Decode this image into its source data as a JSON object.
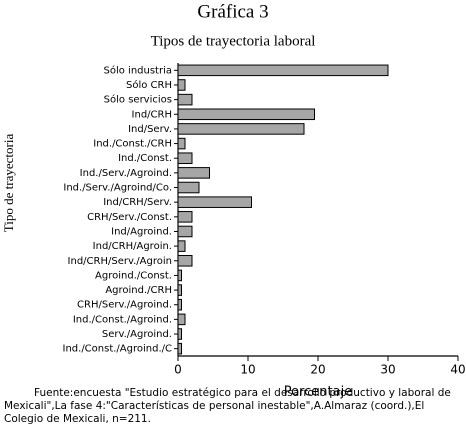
{
  "chart_data": {
    "type": "barh",
    "title": "Gráfica 3",
    "subtitle": "Tipos de trayectoria laboral",
    "x_label": "Porcentaje",
    "y_label": "Tipo de trayectoria",
    "categories": [
      "Sólo industria",
      "Sólo CRH",
      "Sólo servicios",
      "Ind/CRH",
      "Ind/Serv.",
      "Ind./Const./CRH",
      "Ind./Const.",
      "Ind./Serv./Agroind.",
      "Ind./Serv./Agroind/Co.",
      "Ind/CRH/Serv.",
      "CRH/Serv./Const.",
      "Ind/Agroind.",
      "Ind/CRH/Agroin.",
      "Ind/CRH/Serv./Agroin",
      "Agroind./Const.",
      "Agroind./CRH",
      "CRH/Serv./Agroind.",
      "Ind./Const./Agroind.",
      "Serv./Agroind.",
      "Ind./Const./Agroind./C"
    ],
    "values": [
      30,
      1,
      2,
      19.5,
      18,
      1,
      2,
      4.5,
      3,
      10.5,
      2,
      2,
      1,
      2,
      0.5,
      0.5,
      0.5,
      1,
      0.5,
      0.5
    ],
    "color": "#a6a6a6",
    "xlim": [
      0,
      40
    ],
    "xticks": [
      0,
      10,
      20,
      30,
      40
    ],
    "grid": false,
    "footnote": [
      "Fuente:encuesta \"Estudio estratégico para el desarrollo productivo y laboral de",
      "Mexicali\",La fase 4:\"Características de personal inestable\",A.Almaraz (coord.),El",
      "Colegio de Mexicali, n=211."
    ]
  }
}
